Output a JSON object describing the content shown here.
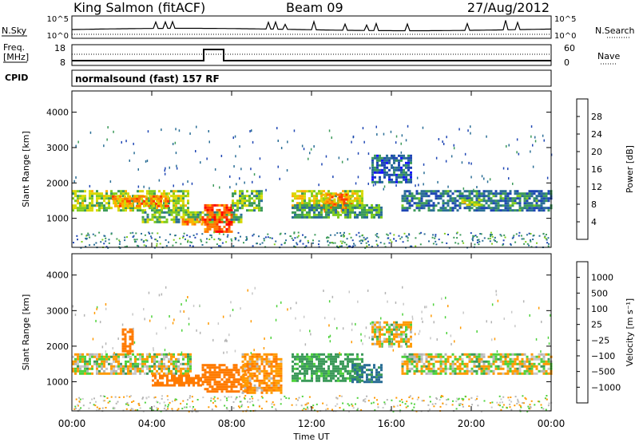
{
  "header": {
    "station": "King Salmon (fitACF)",
    "beam": "Beam 09",
    "date": "27/Aug/2012"
  },
  "top_panels": {
    "nsky_label": "N.Sky",
    "nsearch_label": "N.Search",
    "freq_label_line1": "Freq.",
    "freq_label_line2": "[MHz]",
    "nave_label": "Nave",
    "cpid_label": "CPID",
    "nsky_ticks": [
      "10^5",
      "10^0"
    ],
    "nsearch_ticks": [
      "10^5",
      "10^0"
    ],
    "freq_ticks": [
      "18",
      "8"
    ],
    "nave_ticks": [
      "60",
      "0"
    ],
    "cpid_text": "normalsound (fast) 157 RF"
  },
  "power_colorbar": {
    "label": "Power [dB]",
    "ticks": [
      "28",
      "24",
      "20",
      "16",
      "12",
      "8",
      "4"
    ],
    "colors": [
      "#ff0000",
      "#ff3c00",
      "#ff7a00",
      "#ffae00",
      "#d8d800",
      "#7fcc1e",
      "#3c9a5a",
      "#2a6e96",
      "#1e46b4",
      "#1414ff"
    ]
  },
  "velocity_colorbar": {
    "label": "Velocity [m s⁻¹]",
    "ticks": [
      "1000",
      "500",
      "100",
      "25",
      "−25",
      "−100",
      "−500",
      "−1000"
    ],
    "colors": [
      "#1e46b4",
      "#2a6e96",
      "#3c9a5a",
      "#4ed23c",
      "#b4b4b4",
      "#c8c8c8",
      "#ff9a00",
      "#ff7a00",
      "#ff3c00",
      "#ff0000"
    ]
  },
  "chart_data": [
    {
      "type": "heatmap",
      "title": "",
      "xlabel": "Time UT",
      "ylabel": "Slant Range [km]",
      "x_ticks": [
        "00:00",
        "04:00",
        "08:00",
        "12:00",
        "16:00",
        "20:00",
        "00:00"
      ],
      "y_ticks": [
        "1000",
        "2000",
        "3000",
        "4000"
      ],
      "xlim_hours": [
        0,
        24
      ],
      "ylim_km": [
        180,
        4600
      ],
      "quantity": "Power [dB]",
      "echo_regions": [
        {
          "t0": 0.0,
          "t1": 5.8,
          "r0": 1250,
          "r1": 1800,
          "level": 14
        },
        {
          "t0": 2.0,
          "t1": 4.8,
          "r0": 1350,
          "r1": 1650,
          "level": 22
        },
        {
          "t0": 3.5,
          "t1": 8.5,
          "r0": 900,
          "r1": 1200,
          "level": 12
        },
        {
          "t0": 5.5,
          "t1": 6.5,
          "r0": 800,
          "r1": 1000,
          "level": 22
        },
        {
          "t0": 6.5,
          "t1": 8.0,
          "r0": 600,
          "r1": 1400,
          "level": 26
        },
        {
          "t0": 8.0,
          "t1": 9.5,
          "r0": 1200,
          "r1": 1800,
          "level": 12
        },
        {
          "t0": 11.0,
          "t1": 14.5,
          "r0": 1300,
          "r1": 1800,
          "level": 16
        },
        {
          "t0": 12.5,
          "t1": 14.0,
          "r0": 1200,
          "r1": 1700,
          "level": 22
        },
        {
          "t0": 11.0,
          "t1": 15.5,
          "r0": 1000,
          "r1": 1400,
          "level": 10
        },
        {
          "t0": 15.0,
          "t1": 17.0,
          "r0": 2000,
          "r1": 2800,
          "level": 6
        },
        {
          "t0": 16.5,
          "t1": 24.0,
          "r0": 1200,
          "r1": 1800,
          "level": 7
        },
        {
          "t0": 19.5,
          "t1": 20.5,
          "r0": 1350,
          "r1": 1550,
          "level": 14
        }
      ]
    },
    {
      "type": "heatmap",
      "title": "",
      "xlabel": "Time UT",
      "ylabel": "Slant Range [km]",
      "x_ticks": [
        "00:00",
        "04:00",
        "08:00",
        "12:00",
        "16:00",
        "20:00",
        "00:00"
      ],
      "y_ticks": [
        "1000",
        "2000",
        "3000",
        "4000"
      ],
      "xlim_hours": [
        0,
        24
      ],
      "ylim_km": [
        180,
        4600
      ],
      "quantity": "Velocity [m s^-1]",
      "echo_regions": [
        {
          "t0": 0.0,
          "t1": 6.0,
          "r0": 1250,
          "r1": 1800,
          "level": 0
        },
        {
          "t0": 2.5,
          "t1": 3.0,
          "r0": 1800,
          "r1": 2500,
          "level": -300
        },
        {
          "t0": 4.0,
          "t1": 6.5,
          "r0": 900,
          "r1": 1200,
          "level": -300
        },
        {
          "t0": 6.5,
          "t1": 9.0,
          "r0": 700,
          "r1": 1500,
          "level": -400
        },
        {
          "t0": 8.5,
          "t1": 10.5,
          "r0": 700,
          "r1": 1800,
          "level": -100
        },
        {
          "t0": 11.0,
          "t1": 14.5,
          "r0": 1000,
          "r1": 1800,
          "level": 150
        },
        {
          "t0": 14.0,
          "t1": 15.5,
          "r0": 1000,
          "r1": 1500,
          "level": 300
        },
        {
          "t0": 15.0,
          "t1": 17.0,
          "r0": 2000,
          "r1": 2700,
          "level": 0
        },
        {
          "t0": 16.5,
          "t1": 24.0,
          "r0": 1200,
          "r1": 1800,
          "level": 0
        }
      ]
    }
  ]
}
